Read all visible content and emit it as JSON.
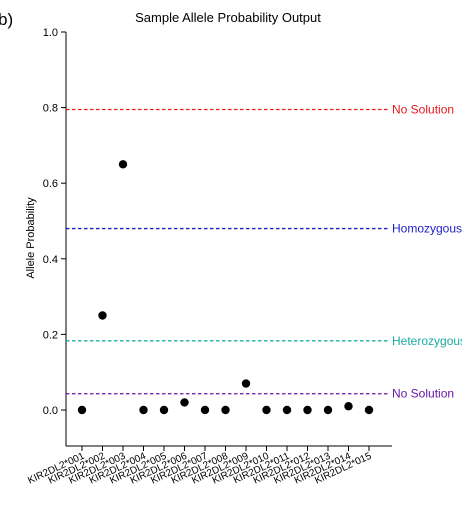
{
  "panel_label": "b)",
  "chart_data": {
    "type": "scatter",
    "title": "Sample Allele Probability Output",
    "xlabel": "",
    "ylabel": "Allele Probability",
    "ylim": [
      0,
      1.0
    ],
    "yticks": [
      "0.0",
      "0.2",
      "0.4",
      "0.6",
      "0.8",
      "1.0"
    ],
    "categories": [
      "KIR2DL2*001",
      "KIR2DL2*002",
      "KIR2DL2*003",
      "KIR2DL2*004",
      "KIR2DL2*005",
      "KIR2DL2*006",
      "KIR2DL2*007",
      "KIR2DL2*008",
      "KIR2DL2*009",
      "KIR2DL2*010",
      "KIR2DL2*011",
      "KIR2DL2*012",
      "KIR2DL2*013",
      "KIR2DL2*014",
      "KIR2DL2*015"
    ],
    "values": [
      0.0,
      0.25,
      0.65,
      0.0,
      0.0,
      0.02,
      0.0,
      0.0,
      0.07,
      0.0,
      0.0,
      0.0,
      0.0,
      0.01,
      0.0
    ],
    "point_color": "#000000",
    "reference_lines": [
      {
        "label": "No Solution",
        "value": 0.795,
        "color": "#e8191c"
      },
      {
        "label": "Homozygous",
        "value": 0.48,
        "color": "#1d1dc8"
      },
      {
        "label": "Heterozygous",
        "value": 0.183,
        "color": "#1aaba3"
      },
      {
        "label": "No Solution",
        "value": 0.043,
        "color": "#6c16a6"
      }
    ],
    "grid": false,
    "legend": "none"
  }
}
